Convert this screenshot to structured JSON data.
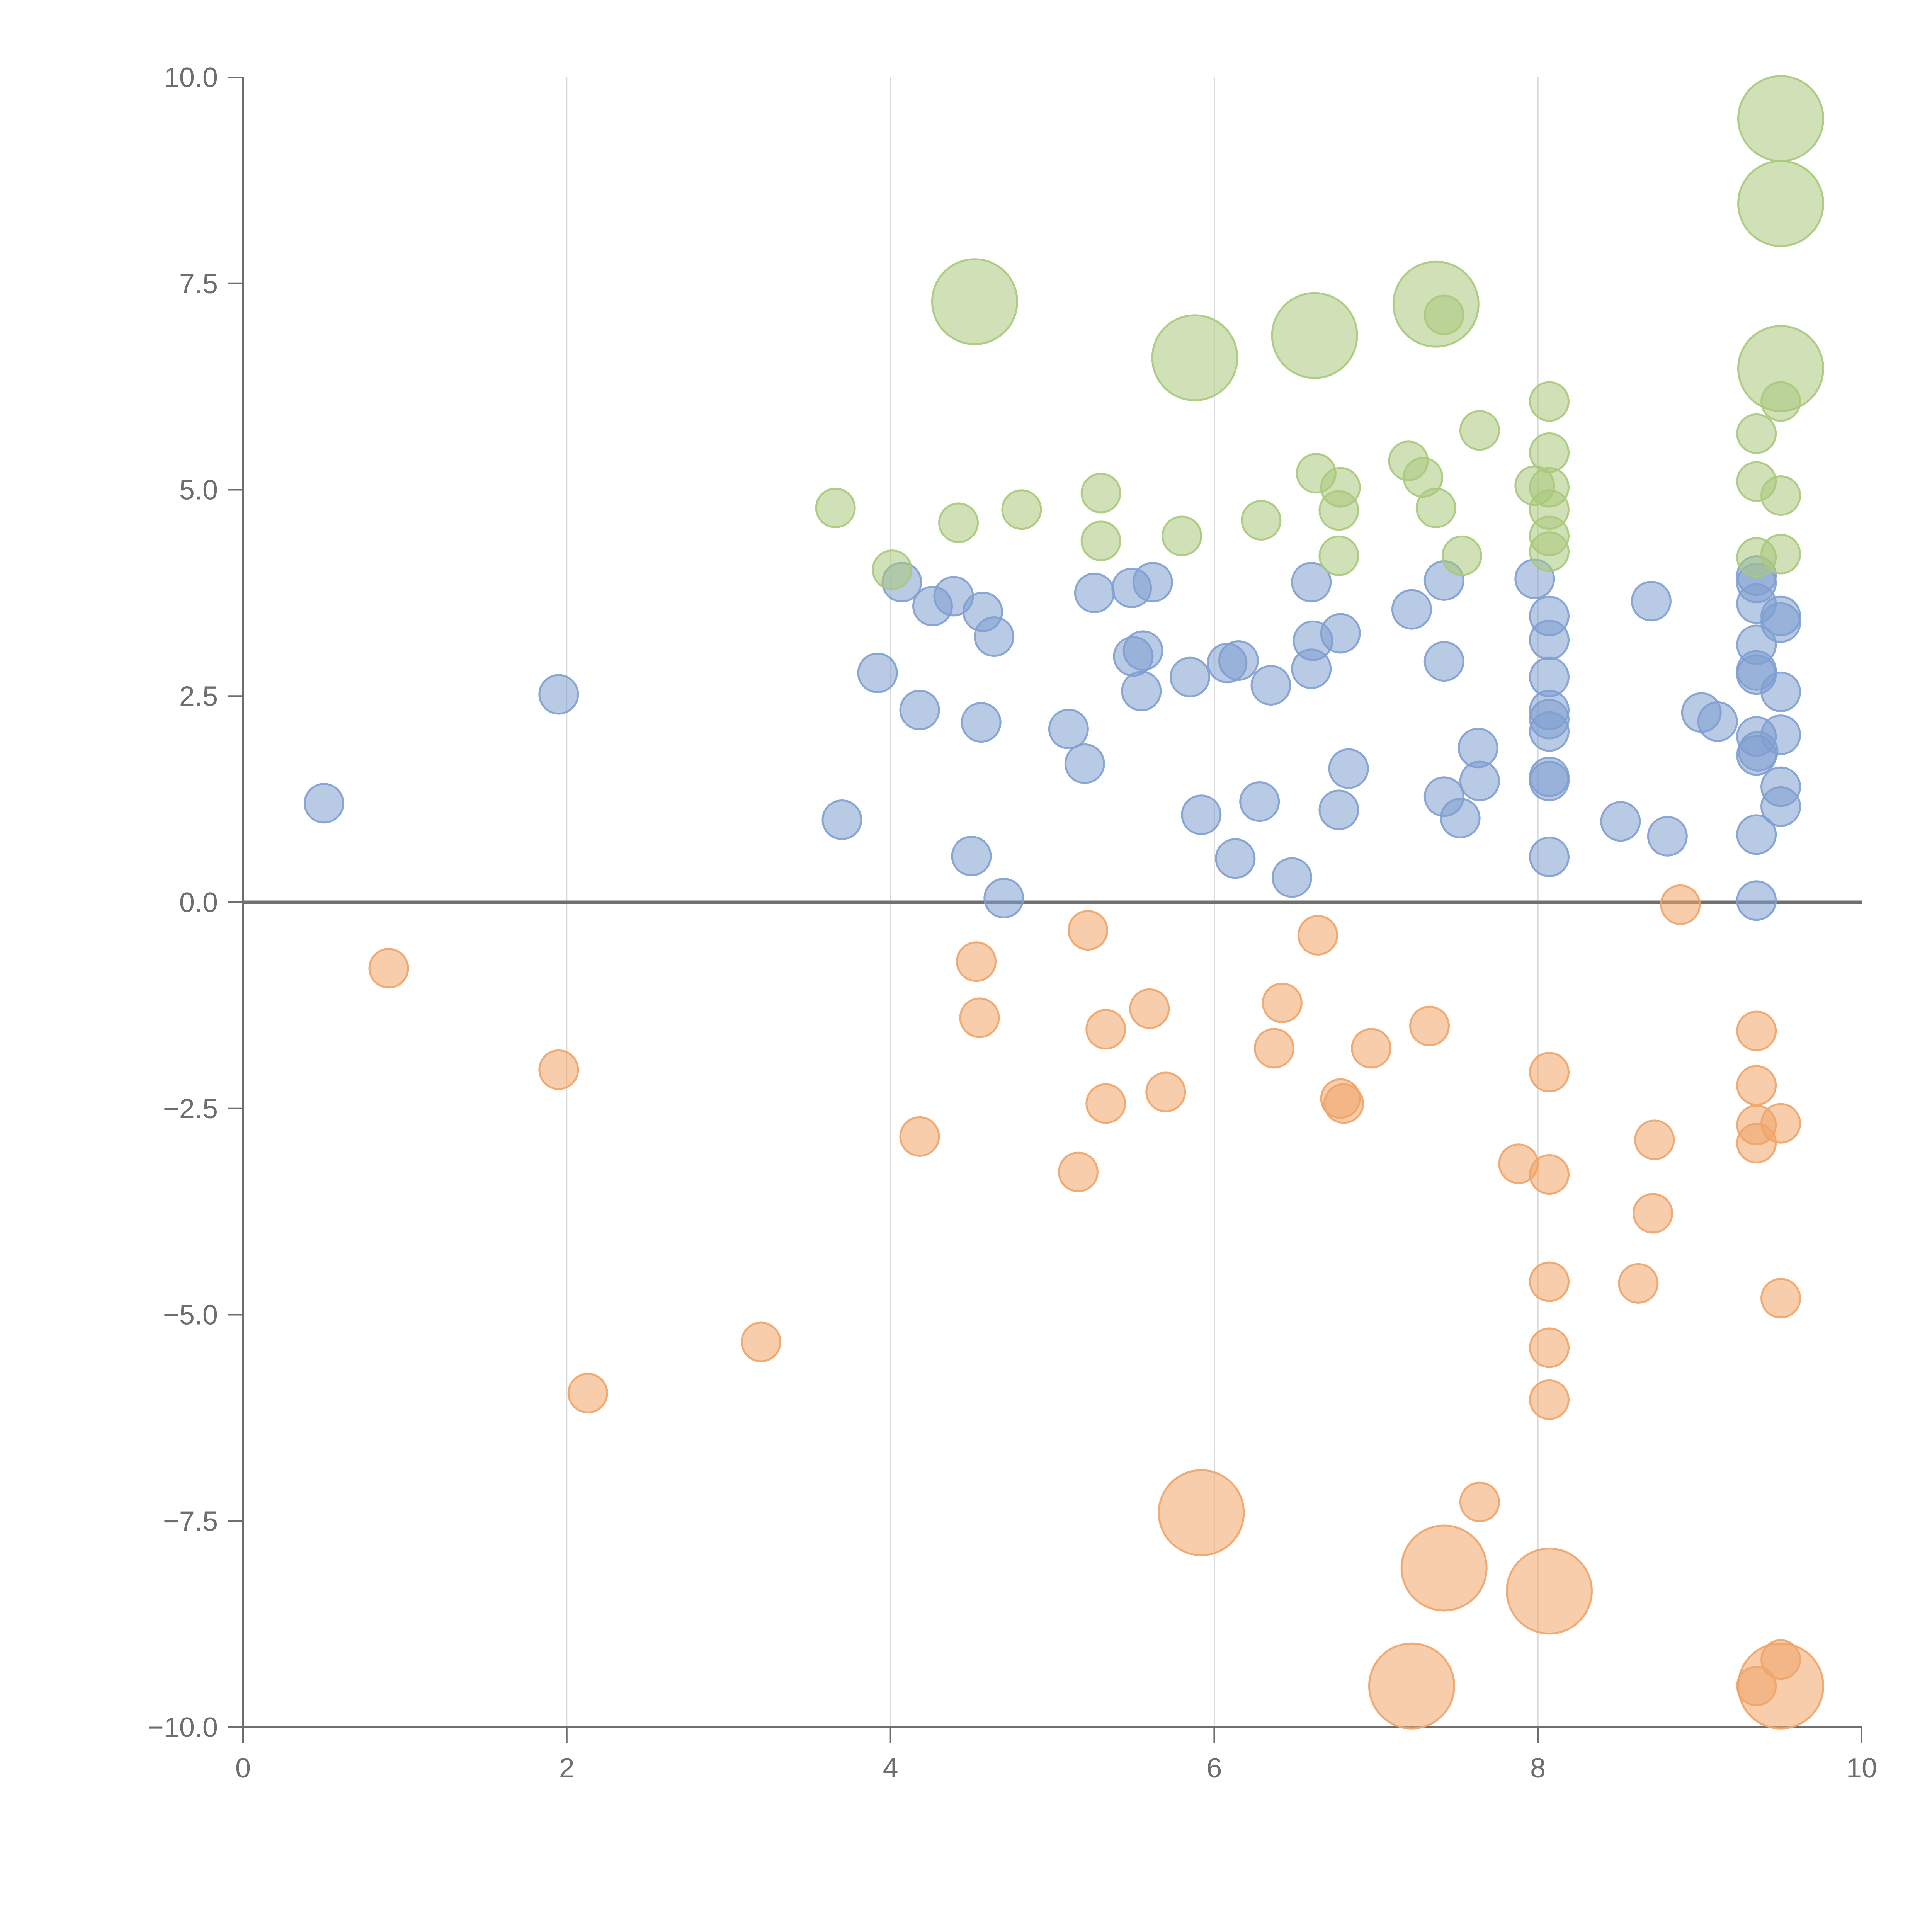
{
  "chart_data": {
    "type": "scatter",
    "title": "",
    "xlabel": "",
    "ylabel": "",
    "xlim": [
      0,
      10
    ],
    "ylim": [
      -10,
      10
    ],
    "grid": "vertical",
    "legend": "none",
    "x_ticks": [
      "0",
      "2",
      "4",
      "6",
      "8",
      "10"
    ],
    "x_tick_values": [
      0,
      2,
      4,
      6,
      8,
      10
    ],
    "y_ticks": [
      "10.0",
      "7.5",
      "5.0",
      "2.5",
      "0.0",
      "−2.5",
      "−5.0",
      "−7.5",
      "−10.0"
    ],
    "y_tick_values": [
      10,
      7.5,
      5,
      2.5,
      0,
      -2.5,
      -5,
      -7.5,
      -10
    ],
    "colors": {
      "blue": "#7f9fd0",
      "orange": "#f0a468",
      "green": "#a9c97b"
    },
    "series": [
      {
        "name": "blue",
        "color": "#7f9fd0",
        "points": [
          [
            0.5,
            1.2,
            1
          ],
          [
            1.95,
            2.52,
            1
          ],
          [
            3.7,
            1.0,
            1
          ],
          [
            3.92,
            2.78,
            1
          ],
          [
            4.07,
            3.88,
            1
          ],
          [
            4.18,
            2.33,
            1
          ],
          [
            4.26,
            3.59,
            1
          ],
          [
            4.39,
            3.71,
            1
          ],
          [
            4.5,
            0.56,
            1
          ],
          [
            4.56,
            2.18,
            1
          ],
          [
            4.57,
            3.52,
            1
          ],
          [
            4.64,
            3.22,
            1
          ],
          [
            4.7,
            0.05,
            1
          ],
          [
            5.1,
            2.1,
            1
          ],
          [
            5.2,
            1.68,
            1
          ],
          [
            5.26,
            3.75,
            1
          ],
          [
            5.49,
            3.81,
            1
          ],
          [
            5.5,
            2.98,
            1
          ],
          [
            5.55,
            2.56,
            1
          ],
          [
            5.56,
            3.05,
            1
          ],
          [
            5.62,
            3.88,
            1
          ],
          [
            5.85,
            2.73,
            1
          ],
          [
            5.92,
            1.06,
            1
          ],
          [
            6.08,
            2.9,
            1
          ],
          [
            6.13,
            0.53,
            1
          ],
          [
            6.15,
            2.93,
            1
          ],
          [
            6.28,
            1.22,
            1
          ],
          [
            6.35,
            2.63,
            1
          ],
          [
            6.48,
            0.3,
            1
          ],
          [
            6.6,
            3.88,
            1
          ],
          [
            6.6,
            2.83,
            1
          ],
          [
            6.61,
            3.17,
            1
          ],
          [
            6.77,
            1.12,
            1
          ],
          [
            6.78,
            3.26,
            1
          ],
          [
            6.83,
            1.62,
            1
          ],
          [
            7.22,
            3.55,
            1
          ],
          [
            7.42,
            3.9,
            1
          ],
          [
            7.42,
            2.92,
            1
          ],
          [
            7.42,
            1.28,
            1
          ],
          [
            7.52,
            1.02,
            1
          ],
          [
            7.63,
            1.87,
            1
          ],
          [
            7.64,
            1.47,
            1
          ],
          [
            7.98,
            3.92,
            1
          ],
          [
            8.07,
            3.47,
            1
          ],
          [
            8.07,
            3.18,
            1
          ],
          [
            8.07,
            2.73,
            1
          ],
          [
            8.07,
            2.33,
            1
          ],
          [
            8.07,
            2.22,
            1
          ],
          [
            8.07,
            2.07,
            1
          ],
          [
            8.07,
            1.52,
            1
          ],
          [
            8.07,
            1.47,
            1
          ],
          [
            8.07,
            0.55,
            1
          ],
          [
            8.51,
            0.98,
            1
          ],
          [
            8.7,
            3.65,
            1
          ],
          [
            8.8,
            0.8,
            1
          ],
          [
            9.01,
            2.3,
            1
          ],
          [
            9.11,
            2.19,
            1
          ],
          [
            9.35,
            3.96,
            1
          ],
          [
            9.35,
            3.87,
            1
          ],
          [
            9.35,
            3.62,
            1
          ],
          [
            9.35,
            3.12,
            1
          ],
          [
            9.35,
            2.81,
            1
          ],
          [
            9.35,
            2.76,
            1
          ],
          [
            9.35,
            2.01,
            1
          ],
          [
            9.36,
            1.83,
            1
          ],
          [
            9.35,
            1.78,
            1
          ],
          [
            9.35,
            0.82,
            1
          ],
          [
            9.35,
            0.02,
            1
          ],
          [
            9.5,
            3.47,
            1
          ],
          [
            9.5,
            3.39,
            1
          ],
          [
            9.5,
            2.55,
            1
          ],
          [
            9.5,
            2.03,
            1
          ],
          [
            9.5,
            1.4,
            1
          ],
          [
            9.5,
            1.16,
            1
          ]
        ]
      },
      {
        "name": "orange",
        "color": "#f0a468",
        "points": [
          [
            0.9,
            -0.8,
            1
          ],
          [
            1.95,
            -2.03,
            1
          ],
          [
            2.13,
            -5.95,
            1
          ],
          [
            3.2,
            -5.33,
            1
          ],
          [
            4.18,
            -2.84,
            1
          ],
          [
            4.53,
            -0.72,
            1
          ],
          [
            4.55,
            -1.4,
            1
          ],
          [
            5.16,
            -3.27,
            1
          ],
          [
            5.22,
            -0.34,
            1
          ],
          [
            5.33,
            -1.54,
            1
          ],
          [
            5.33,
            -2.44,
            1
          ],
          [
            5.6,
            -1.29,
            1
          ],
          [
            5.7,
            -2.3,
            1
          ],
          [
            5.92,
            -7.4,
            3
          ],
          [
            6.37,
            -1.77,
            1
          ],
          [
            6.42,
            -1.22,
            1
          ],
          [
            6.64,
            -0.4,
            1
          ],
          [
            6.78,
            -2.38,
            1
          ],
          [
            6.8,
            -2.44,
            1
          ],
          [
            6.97,
            -1.77,
            1
          ],
          [
            7.33,
            -1.5,
            1
          ],
          [
            7.22,
            -9.5,
            3
          ],
          [
            7.42,
            -8.07,
            3
          ],
          [
            7.64,
            -7.27,
            1
          ],
          [
            7.88,
            -3.17,
            1
          ],
          [
            8.07,
            -2.06,
            1
          ],
          [
            8.07,
            -3.3,
            1
          ],
          [
            8.07,
            -4.6,
            1
          ],
          [
            8.07,
            -5.4,
            1
          ],
          [
            8.07,
            -6.03,
            1
          ],
          [
            8.07,
            -8.35,
            3
          ],
          [
            8.62,
            -4.62,
            1
          ],
          [
            8.71,
            -3.77,
            1
          ],
          [
            8.72,
            -2.88,
            1
          ],
          [
            8.88,
            -0.03,
            1
          ],
          [
            9.35,
            -1.56,
            1
          ],
          [
            9.35,
            -2.22,
            1
          ],
          [
            9.35,
            -2.7,
            1
          ],
          [
            9.35,
            -2.92,
            1
          ],
          [
            9.35,
            -9.5,
            1
          ],
          [
            9.5,
            -2.68,
            1
          ],
          [
            9.5,
            -4.8,
            1
          ],
          [
            9.5,
            -9.18,
            1
          ],
          [
            9.5,
            -9.5,
            3
          ]
        ]
      },
      {
        "name": "green",
        "color": "#a9c97b",
        "points": [
          [
            3.66,
            4.78,
            1
          ],
          [
            4.01,
            4.03,
            1
          ],
          [
            4.42,
            4.6,
            1
          ],
          [
            4.81,
            4.76,
            1
          ],
          [
            4.52,
            7.28,
            3
          ],
          [
            5.3,
            4.96,
            1
          ],
          [
            5.3,
            4.38,
            1
          ],
          [
            5.8,
            4.44,
            1
          ],
          [
            5.88,
            6.6,
            3
          ],
          [
            6.29,
            4.63,
            1
          ],
          [
            6.62,
            6.87,
            3
          ],
          [
            6.63,
            5.2,
            1
          ],
          [
            6.78,
            5.03,
            1
          ],
          [
            6.77,
            4.75,
            1
          ],
          [
            6.77,
            4.2,
            1
          ],
          [
            7.2,
            5.35,
            1
          ],
          [
            7.29,
            5.15,
            1
          ],
          [
            7.37,
            7.25,
            3
          ],
          [
            7.37,
            4.78,
            1
          ],
          [
            7.42,
            7.12,
            1
          ],
          [
            7.53,
            4.2,
            1
          ],
          [
            7.64,
            5.72,
            1
          ],
          [
            7.98,
            5.05,
            1
          ],
          [
            8.07,
            6.07,
            1
          ],
          [
            8.07,
            5.45,
            1
          ],
          [
            8.07,
            5.03,
            1
          ],
          [
            8.07,
            4.76,
            1
          ],
          [
            8.07,
            4.44,
            1
          ],
          [
            8.07,
            4.25,
            1
          ],
          [
            9.35,
            5.68,
            1
          ],
          [
            9.35,
            5.1,
            1
          ],
          [
            9.35,
            4.18,
            1
          ],
          [
            9.5,
            9.5,
            3
          ],
          [
            9.5,
            8.47,
            3
          ],
          [
            9.5,
            6.47,
            3
          ],
          [
            9.5,
            6.07,
            1
          ],
          [
            9.5,
            4.93,
            1
          ],
          [
            9.5,
            4.22,
            1
          ]
        ]
      }
    ]
  }
}
